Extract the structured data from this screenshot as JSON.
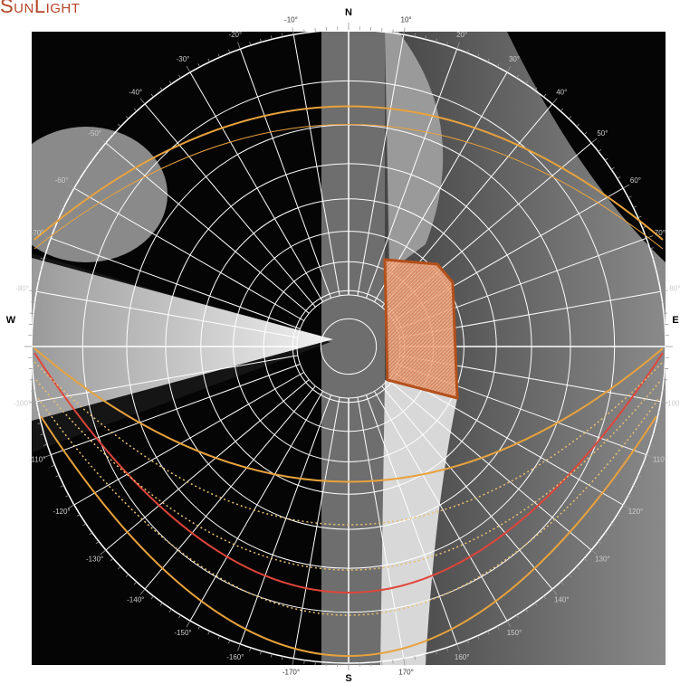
{
  "header": {
    "title": "SunLight"
  },
  "compass": {
    "north": "N",
    "east": "E",
    "south": "S",
    "west": "W"
  },
  "azimuth_labels": [
    "-170°",
    "-160°",
    "-150°",
    "-140°",
    "-130°",
    "-120°",
    "-110°",
    "-100°",
    "-80°",
    "-70°",
    "-60°",
    "-50°",
    "-40°",
    "-30°",
    "-20°",
    "-10°",
    "10°",
    "20°",
    "30°",
    "40°",
    "50°",
    "60°",
    "70°",
    "80°",
    "100°",
    "110°",
    "120°",
    "130°",
    "140°",
    "150°",
    "160°",
    "170°"
  ]
}
